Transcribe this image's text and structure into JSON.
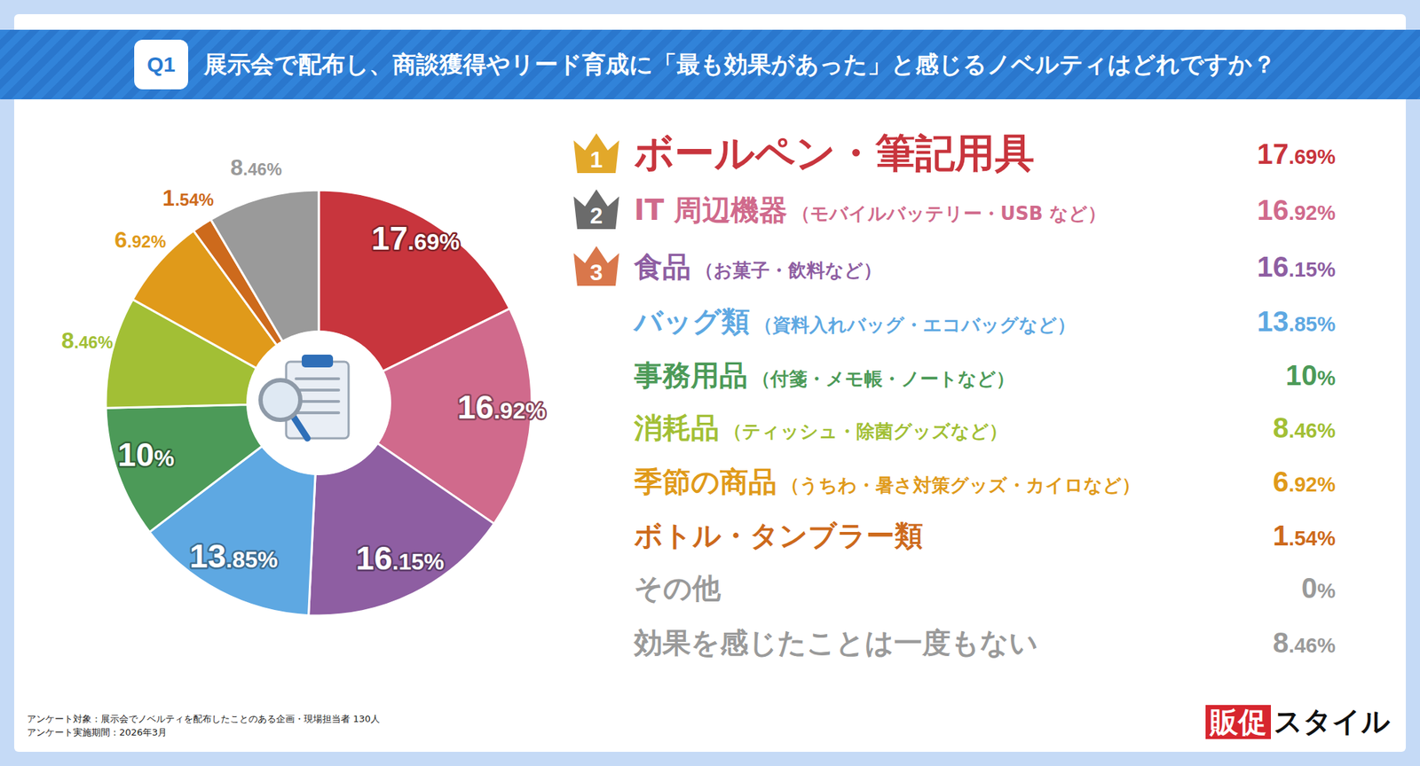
{
  "chart_data": {
    "type": "pie",
    "badge": "Q1",
    "title": "展示会で配布し、商談獲得やリード育成に「最も効果があった」と感じるノベルティはどれですか？",
    "categories": [
      "ボールペン・筆記用具",
      "IT 周辺機器",
      "食品",
      "バッグ類",
      "事務用品",
      "消耗品",
      "季節の商品",
      "ボトル・タンブラー類",
      "その他",
      "効果を感じたことは一度もない"
    ],
    "category_details": [
      null,
      "（モバイルバッテリー・USB など）",
      "（お菓子・飲料など）",
      "（資料入れバッグ・エコバッグなど）",
      "（付箋・メモ帳・ノートなど）",
      "（ティッシュ・除菌グッズなど）",
      "（うちわ・暑さ対策グッズ・カイロなど）",
      null,
      null,
      null
    ],
    "ranks": [
      1,
      2,
      3,
      null,
      null,
      null,
      null,
      null,
      null,
      null
    ],
    "values": [
      17.69,
      16.92,
      16.15,
      13.85,
      10,
      8.46,
      6.92,
      1.54,
      0,
      8.46
    ],
    "value_labels": [
      "17.69%",
      "16.92%",
      "16.15%",
      "13.85%",
      "10%",
      "8.46%",
      "6.92%",
      "1.54%",
      "0%",
      "8.46%"
    ],
    "colors": [
      "#c8353d",
      "#d06a8c",
      "#8e5ea2",
      "#5ea8e2",
      "#4c9a58",
      "#a2bf35",
      "#e09a1a",
      "#cd6a1c",
      "#9a9a9a",
      "#9a9a9a"
    ],
    "data_labels": true,
    "notes": [
      "アンケート対象：展示会でノベルティを配布したことのある企画・現場担当者 130人",
      "アンケート実施期間：2026年3月"
    ],
    "logo": [
      "販促",
      "スタイル"
    ]
  }
}
